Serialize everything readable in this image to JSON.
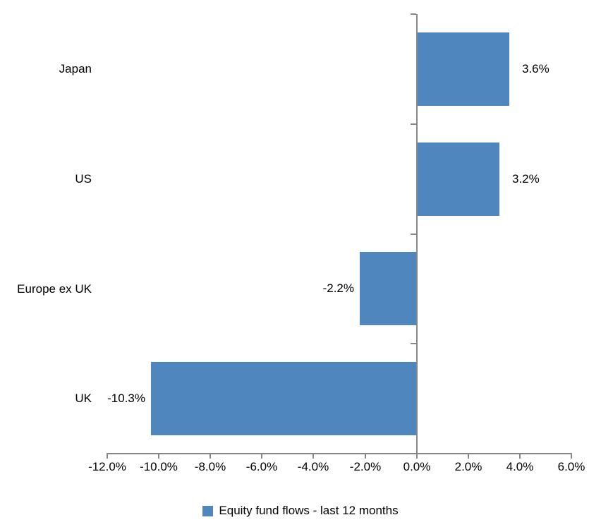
{
  "chart_data": {
    "type": "bar",
    "orientation": "horizontal",
    "title": "",
    "categories": [
      "Japan",
      "US",
      "Europe ex UK",
      "UK"
    ],
    "series": [
      {
        "name": "Equity fund flows - last 12 months",
        "values": [
          3.6,
          3.2,
          -2.2,
          -10.3
        ],
        "data_labels": [
          "3.6%",
          "3.2%",
          "-2.2%",
          "-10.3%"
        ]
      }
    ],
    "xlabel": "",
    "ylabel": "",
    "xlim": [
      -12,
      6
    ],
    "x_ticks": [
      -12,
      -10,
      -8,
      -6,
      -4,
      -2,
      0,
      2,
      4,
      6
    ],
    "x_tick_labels": [
      "-12.0%",
      "-10.0%",
      "-8.0%",
      "-6.0%",
      "-4.0%",
      "-2.0%",
      "0.0%",
      "2.0%",
      "4.0%",
      "6.0%"
    ],
    "grid": false,
    "legend": {
      "position": "bottom",
      "label": "Equity fund flows - last 12 months"
    },
    "colors": {
      "bar": "#4E86BD",
      "axis": "#878787",
      "text": "#000000",
      "background": "#FFFFFF"
    }
  }
}
